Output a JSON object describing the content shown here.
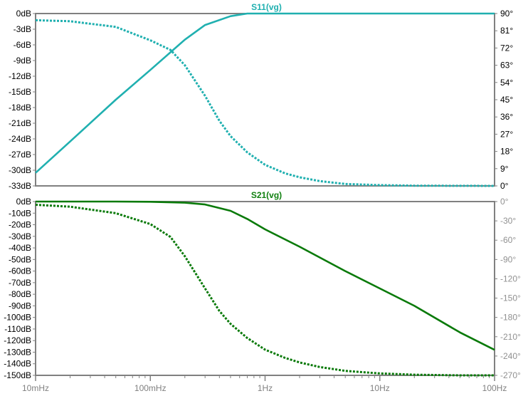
{
  "chart_data": [
    {
      "type": "line",
      "title": "S11(vg)",
      "title_color": "#20b0b0",
      "series_color": "#20b0b0",
      "x_scale": "log",
      "xlim_hz": [
        0.01,
        100
      ],
      "left_axis": {
        "ylim": [
          -33,
          0
        ],
        "tick_values": [
          0,
          -3,
          -6,
          -9,
          -12,
          -15,
          -18,
          -21,
          -24,
          -27,
          -30,
          -33
        ],
        "tick_labels": [
          "0dB",
          "-3dB",
          "-6dB",
          "-9dB",
          "-12dB",
          "-15dB",
          "-18dB",
          "-21dB",
          "-24dB",
          "-27dB",
          "-30dB",
          "-33dB"
        ],
        "label_color": "#000000"
      },
      "right_axis": {
        "ylim": [
          0,
          90
        ],
        "tick_values": [
          90,
          81,
          72,
          63,
          54,
          45,
          36,
          27,
          18,
          9,
          0
        ],
        "tick_labels": [
          "90°",
          "81°",
          "72°",
          "63°",
          "54°",
          "45°",
          "36°",
          "27°",
          "18°",
          "9°",
          "0°"
        ],
        "label_color": "#000000"
      },
      "series": [
        {
          "quantity": "magnitude",
          "style": "solid",
          "axis": "left",
          "x": [
            0.01,
            0.02,
            0.05,
            0.1,
            0.2,
            0.3,
            0.5,
            0.7,
            1,
            2,
            10,
            100
          ],
          "y": [
            -30.5,
            -24.5,
            -16.5,
            -10.8,
            -5.0,
            -2.2,
            -0.5,
            0,
            0,
            0,
            0,
            0
          ]
        },
        {
          "quantity": "phase",
          "style": "dotted",
          "axis": "right",
          "x": [
            0.01,
            0.02,
            0.05,
            0.1,
            0.15,
            0.2,
            0.3,
            0.4,
            0.5,
            0.7,
            1,
            1.5,
            2,
            3,
            5,
            10,
            20,
            100
          ],
          "y": [
            86.5,
            86,
            83,
            76,
            71,
            63,
            47,
            34,
            26,
            17.5,
            11,
            6.5,
            4.5,
            2.5,
            1,
            0.4,
            0.1,
            0
          ]
        }
      ]
    },
    {
      "type": "line",
      "title": "S21(vg)",
      "title_color": "#108010",
      "series_color": "#0a7a0a",
      "x_scale": "log",
      "xlim_hz": [
        0.01,
        100
      ],
      "left_axis": {
        "ylim": [
          -150,
          0
        ],
        "tick_values": [
          0,
          -10,
          -20,
          -30,
          -40,
          -50,
          -60,
          -70,
          -80,
          -90,
          -100,
          -110,
          -120,
          -130,
          -140,
          -150
        ],
        "tick_labels": [
          "0dB",
          "-10dB",
          "-20dB",
          "-30dB",
          "-40dB",
          "-50dB",
          "-60dB",
          "-70dB",
          "-80dB",
          "-90dB",
          "-100dB",
          "-110dB",
          "-120dB",
          "-130dB",
          "-140dB",
          "-150dB"
        ],
        "label_color": "#000000"
      },
      "right_axis": {
        "ylim": [
          -270,
          0
        ],
        "tick_values": [
          0,
          -30,
          -60,
          -90,
          -120,
          -150,
          -180,
          -210,
          -240,
          -270
        ],
        "tick_labels": [
          "0°",
          "-30°",
          "-60°",
          "-90°",
          "-120°",
          "-150°",
          "-180°",
          "-210°",
          "-240°",
          "-270°"
        ],
        "label_color": "#909090"
      },
      "series": [
        {
          "quantity": "magnitude",
          "style": "solid",
          "axis": "left",
          "x": [
            0.01,
            0.05,
            0.1,
            0.2,
            0.3,
            0.5,
            0.7,
            1,
            2,
            5,
            10,
            20,
            50,
            100
          ],
          "y": [
            0,
            0,
            -0.2,
            -1,
            -2.5,
            -8,
            -15,
            -24,
            -39,
            -60,
            -75,
            -90,
            -113,
            -128
          ]
        },
        {
          "quantity": "phase",
          "style": "dotted",
          "axis": "right",
          "x": [
            0.01,
            0.02,
            0.05,
            0.1,
            0.15,
            0.2,
            0.3,
            0.4,
            0.5,
            0.7,
            1,
            1.5,
            2,
            3,
            5,
            10,
            20,
            50,
            100
          ],
          "y": [
            -5,
            -8,
            -18,
            -35,
            -55,
            -85,
            -135,
            -170,
            -190,
            -212,
            -230,
            -243,
            -250,
            -257,
            -263,
            -267,
            -269,
            -270,
            -270
          ]
        }
      ]
    }
  ],
  "x_axis": {
    "tick_values": [
      0.01,
      0.1,
      1,
      10,
      100
    ],
    "tick_labels": [
      "10mHz",
      "100mHz",
      "1Hz",
      "10Hz",
      "100Hz"
    ]
  }
}
